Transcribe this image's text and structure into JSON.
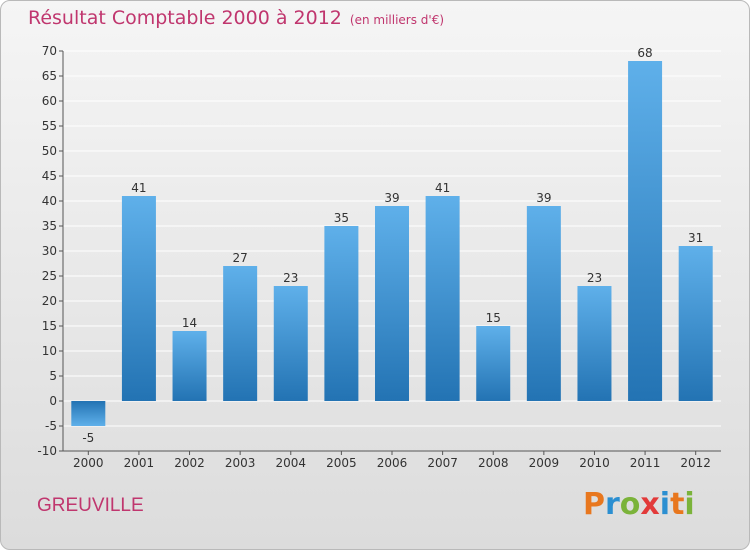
{
  "header": {
    "title": "Résultat Comptable 2000 à 2012",
    "subtitle": "(en milliers d'€)"
  },
  "footer": {
    "city": "GREUVILLE",
    "logo_text": "Proxiti"
  },
  "colors": {
    "title": "#c0366e",
    "bar_top": "#5fb0ea",
    "bar_bottom": "#2373b3",
    "grid": "#ffffff",
    "logo_letters": [
      "#e8771e",
      "#2b8fd1",
      "#7bb33a",
      "#e23a3a",
      "#2b8fd1",
      "#e8771e",
      "#7bb33a"
    ]
  },
  "chart_data": {
    "type": "bar",
    "title": "Résultat Comptable 2000 à 2012",
    "subtitle": "(en milliers d'€)",
    "categories": [
      "2000",
      "2001",
      "2002",
      "2003",
      "2004",
      "2005",
      "2006",
      "2007",
      "2008",
      "2009",
      "2010",
      "2011",
      "2012"
    ],
    "values": [
      -5,
      41,
      14,
      27,
      23,
      35,
      39,
      41,
      15,
      39,
      23,
      68,
      31
    ],
    "ylim": [
      -10,
      70
    ],
    "yticks": [
      -10,
      -5,
      0,
      5,
      10,
      15,
      20,
      25,
      30,
      35,
      40,
      45,
      50,
      55,
      60,
      65,
      70
    ],
    "grid": true,
    "data_labels": true
  }
}
